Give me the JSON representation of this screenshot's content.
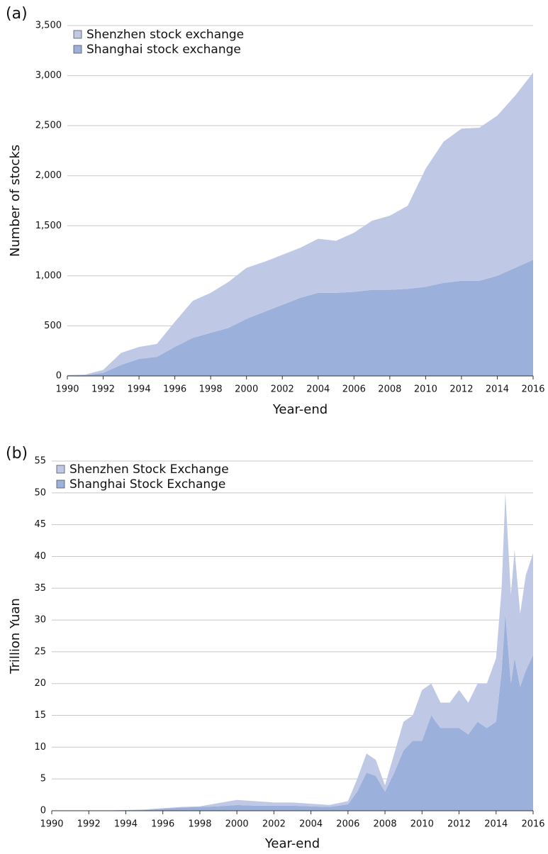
{
  "chart_data": [
    {
      "type": "stacked_area",
      "label": "(a)",
      "xlabel": "Year-end",
      "ylabel": "Number of stocks",
      "x": [
        1990,
        1991,
        1992,
        1993,
        1994,
        1995,
        1996,
        1997,
        1998,
        1999,
        2000,
        2001,
        2002,
        2003,
        2004,
        2005,
        2006,
        2007,
        2008,
        2009,
        2010,
        2011,
        2012,
        2013,
        2014,
        2015,
        2016
      ],
      "series": [
        {
          "name": "Shenzhen stock exchange",
          "color": "#bfc9e6",
          "values": [
            2,
            6,
            30,
            120,
            120,
            130,
            250,
            370,
            400,
            460,
            510,
            500,
            500,
            500,
            540,
            520,
            590,
            690,
            740,
            830,
            1180,
            1410,
            1520,
            1530,
            1600,
            1720,
            1870
          ]
        },
        {
          "name": "Shanghai stock exchange",
          "color": "#9cb0dc",
          "values": [
            8,
            8,
            30,
            110,
            170,
            190,
            290,
            380,
            430,
            480,
            570,
            640,
            710,
            780,
            830,
            830,
            840,
            860,
            860,
            870,
            890,
            930,
            950,
            950,
            1000,
            1080,
            1160
          ]
        }
      ],
      "xlim": [
        1990,
        2016
      ],
      "xticks": [
        1990,
        1992,
        1994,
        1996,
        1998,
        2000,
        2002,
        2004,
        2006,
        2008,
        2010,
        2012,
        2014,
        2016
      ],
      "ylim": [
        0,
        3500
      ],
      "yticks": [
        0,
        500,
        {
          "value": 1000,
          "label": "1,000"
        },
        {
          "value": 1500,
          "label": "1,500"
        },
        {
          "value": 2000,
          "label": "2,000"
        },
        {
          "value": 2500,
          "label": "2,500"
        },
        {
          "value": 3000,
          "label": "3,000"
        },
        {
          "value": 3500,
          "label": "3,500"
        }
      ],
      "grid": true,
      "legend": "upper left"
    },
    {
      "type": "stacked_area",
      "label": "(b)",
      "xlabel": "Year-end",
      "ylabel": "Trillion Yuan",
      "x": [
        1990,
        1992,
        1994,
        1995,
        1996,
        1997,
        1998,
        1999,
        2000,
        2001,
        2002,
        2003,
        2004,
        2005,
        2006,
        2006.5,
        2007,
        2007.5,
        2008,
        2008.5,
        2009,
        2009.5,
        2010,
        2010.5,
        2011,
        2011.5,
        2012,
        2012.5,
        2013,
        2013.5,
        2014,
        2014.3,
        2014.5,
        2014.8,
        2015,
        2015.3,
        2015.6,
        2016
      ],
      "series": [
        {
          "name": "Shenzhen Stock Exchange",
          "color": "#bfc9e6",
          "values": [
            0,
            0,
            0,
            0.1,
            0.1,
            0.1,
            0.1,
            0.5,
            0.8,
            0.7,
            0.5,
            0.5,
            0.4,
            0.3,
            0.5,
            2,
            3,
            2.5,
            1,
            3,
            4.5,
            4,
            8,
            5,
            4,
            4,
            6,
            5,
            6,
            7,
            10,
            13,
            19,
            14,
            17,
            11.5,
            15,
            16
          ]
        },
        {
          "name": "Shanghai Stock Exchange",
          "color": "#9cb0dc",
          "values": [
            0,
            0,
            0.1,
            0.1,
            0.3,
            0.5,
            0.6,
            0.7,
            0.9,
            0.8,
            0.8,
            0.8,
            0.7,
            0.6,
            1.0,
            3.0,
            6.0,
            5.5,
            3.0,
            6.0,
            9.5,
            11,
            11,
            15,
            13,
            13,
            13,
            12,
            14,
            13,
            14,
            22,
            31,
            20,
            24,
            19.5,
            22,
            24.5
          ]
        }
      ],
      "xlim": [
        1990,
        2016
      ],
      "xticks": [
        1990,
        1992,
        1994,
        1996,
        1998,
        2000,
        2002,
        2004,
        2006,
        2008,
        2010,
        2012,
        2014,
        2016
      ],
      "ylim": [
        0,
        55
      ],
      "yticks": [
        0,
        5,
        10,
        15,
        20,
        25,
        30,
        35,
        40,
        45,
        50,
        55
      ],
      "grid": true,
      "legend": "upper left"
    }
  ]
}
